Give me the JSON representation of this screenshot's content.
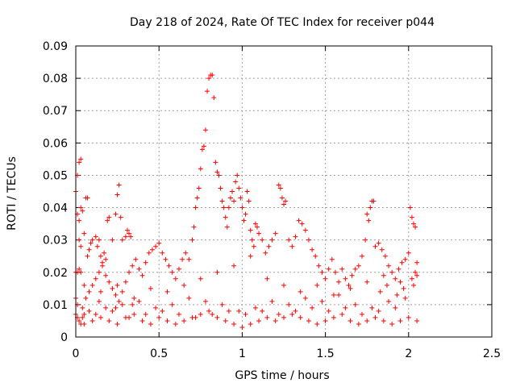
{
  "chart_data": {
    "type": "scatter",
    "title": "Day 218 of 2024, Rate Of TEC Index for receiver p044",
    "xlabel": "GPS time / hours",
    "ylabel": "ROTI / TECUs",
    "xlim": [
      0,
      2.5
    ],
    "ylim": [
      0,
      0.09
    ],
    "grid": true,
    "x_ticks": [
      0,
      0.5,
      1,
      1.5,
      2,
      2.5
    ],
    "x_tick_labels": [
      "0",
      "0.5",
      "1",
      "1.5",
      "2",
      "2.5"
    ],
    "y_ticks": [
      0,
      0.01,
      0.02,
      0.03,
      0.04,
      0.05,
      0.06,
      0.07,
      0.08,
      0.09
    ],
    "y_tick_labels": [
      "0",
      "0.01",
      "0.02",
      "0.03",
      "0.04",
      "0.05",
      "0.06",
      "0.07",
      "0.08",
      "0.09"
    ],
    "marker": "+",
    "marker_color": "#ff0000",
    "series": [
      {
        "name": "ROTI",
        "points": [
          [
            0.0,
            0.045
          ],
          [
            0.01,
            0.05
          ],
          [
            0.02,
            0.054
          ],
          [
            0.03,
            0.055
          ],
          [
            0.01,
            0.038
          ],
          [
            0.02,
            0.036
          ],
          [
            0.03,
            0.04
          ],
          [
            0.04,
            0.039
          ],
          [
            0.06,
            0.043
          ],
          [
            0.07,
            0.043
          ],
          [
            0.0,
            0.02
          ],
          [
            0.01,
            0.02
          ],
          [
            0.02,
            0.021
          ],
          [
            0.03,
            0.02
          ],
          [
            0.0,
            0.012
          ],
          [
            0.01,
            0.01
          ],
          [
            0.0,
            0.007
          ],
          [
            0.01,
            0.006
          ],
          [
            0.02,
            0.005
          ],
          [
            0.03,
            0.004
          ],
          [
            0.04,
            0.006
          ],
          [
            0.05,
            0.007
          ],
          [
            0.02,
            0.03
          ],
          [
            0.03,
            0.028
          ],
          [
            0.05,
            0.032
          ],
          [
            0.07,
            0.025
          ],
          [
            0.08,
            0.027
          ],
          [
            0.09,
            0.029
          ],
          [
            0.1,
            0.03
          ],
          [
            0.12,
            0.031
          ],
          [
            0.13,
            0.028
          ],
          [
            0.14,
            0.03
          ],
          [
            0.15,
            0.025
          ],
          [
            0.16,
            0.023
          ],
          [
            0.17,
            0.026
          ],
          [
            0.18,
            0.024
          ],
          [
            0.19,
            0.036
          ],
          [
            0.2,
            0.037
          ],
          [
            0.22,
            0.03
          ],
          [
            0.24,
            0.038
          ],
          [
            0.25,
            0.044
          ],
          [
            0.26,
            0.047
          ],
          [
            0.27,
            0.037
          ],
          [
            0.28,
            0.03
          ],
          [
            0.3,
            0.031
          ],
          [
            0.31,
            0.033
          ],
          [
            0.32,
            0.032
          ],
          [
            0.33,
            0.031
          ],
          [
            0.06,
            0.012
          ],
          [
            0.08,
            0.014
          ],
          [
            0.1,
            0.016
          ],
          [
            0.12,
            0.018
          ],
          [
            0.14,
            0.02
          ],
          [
            0.16,
            0.022
          ],
          [
            0.18,
            0.019
          ],
          [
            0.2,
            0.017
          ],
          [
            0.22,
            0.015
          ],
          [
            0.24,
            0.013
          ],
          [
            0.26,
            0.011
          ],
          [
            0.28,
            0.014
          ],
          [
            0.3,
            0.017
          ],
          [
            0.32,
            0.02
          ],
          [
            0.34,
            0.022
          ],
          [
            0.36,
            0.024
          ],
          [
            0.38,
            0.021
          ],
          [
            0.4,
            0.019
          ],
          [
            0.42,
            0.023
          ],
          [
            0.44,
            0.026
          ],
          [
            0.46,
            0.027
          ],
          [
            0.48,
            0.028
          ],
          [
            0.5,
            0.029
          ],
          [
            0.52,
            0.026
          ],
          [
            0.54,
            0.024
          ],
          [
            0.56,
            0.022
          ],
          [
            0.58,
            0.02
          ],
          [
            0.6,
            0.018
          ],
          [
            0.62,
            0.021
          ],
          [
            0.64,
            0.024
          ],
          [
            0.66,
            0.026
          ],
          [
            0.68,
            0.024
          ],
          [
            0.7,
            0.03
          ],
          [
            0.71,
            0.034
          ],
          [
            0.72,
            0.04
          ],
          [
            0.73,
            0.043
          ],
          [
            0.74,
            0.046
          ],
          [
            0.75,
            0.052
          ],
          [
            0.76,
            0.058
          ],
          [
            0.77,
            0.059
          ],
          [
            0.78,
            0.064
          ],
          [
            0.79,
            0.076
          ],
          [
            0.8,
            0.08
          ],
          [
            0.81,
            0.081
          ],
          [
            0.82,
            0.081
          ],
          [
            0.83,
            0.074
          ],
          [
            0.84,
            0.054
          ],
          [
            0.85,
            0.051
          ],
          [
            0.86,
            0.05
          ],
          [
            0.87,
            0.046
          ],
          [
            0.88,
            0.042
          ],
          [
            0.89,
            0.04
          ],
          [
            0.9,
            0.037
          ],
          [
            0.91,
            0.034
          ],
          [
            0.92,
            0.04
          ],
          [
            0.93,
            0.043
          ],
          [
            0.94,
            0.045
          ],
          [
            0.95,
            0.042
          ],
          [
            0.96,
            0.048
          ],
          [
            0.97,
            0.05
          ],
          [
            0.98,
            0.046
          ],
          [
            0.99,
            0.043
          ],
          [
            1.0,
            0.04
          ],
          [
            1.01,
            0.036
          ],
          [
            1.02,
            0.038
          ],
          [
            1.03,
            0.045
          ],
          [
            1.04,
            0.042
          ],
          [
            1.05,
            0.033
          ],
          [
            1.06,
            0.03
          ],
          [
            1.07,
            0.028
          ],
          [
            1.08,
            0.035
          ],
          [
            1.09,
            0.034
          ],
          [
            1.1,
            0.032
          ],
          [
            1.12,
            0.03
          ],
          [
            1.14,
            0.026
          ],
          [
            1.16,
            0.028
          ],
          [
            1.18,
            0.03
          ],
          [
            1.2,
            0.032
          ],
          [
            1.22,
            0.047
          ],
          [
            1.23,
            0.046
          ],
          [
            1.24,
            0.043
          ],
          [
            1.25,
            0.041
          ],
          [
            1.26,
            0.042
          ],
          [
            1.28,
            0.03
          ],
          [
            1.3,
            0.028
          ],
          [
            1.32,
            0.031
          ],
          [
            1.34,
            0.036
          ],
          [
            1.36,
            0.035
          ],
          [
            1.38,
            0.033
          ],
          [
            1.4,
            0.03
          ],
          [
            1.42,
            0.027
          ],
          [
            1.44,
            0.025
          ],
          [
            1.46,
            0.022
          ],
          [
            1.48,
            0.02
          ],
          [
            1.5,
            0.018
          ],
          [
            1.52,
            0.021
          ],
          [
            1.54,
            0.024
          ],
          [
            1.56,
            0.02
          ],
          [
            1.58,
            0.017
          ],
          [
            1.6,
            0.021
          ],
          [
            1.62,
            0.018
          ],
          [
            1.64,
            0.016
          ],
          [
            1.66,
            0.019
          ],
          [
            1.68,
            0.021
          ],
          [
            1.7,
            0.022
          ],
          [
            1.72,
            0.025
          ],
          [
            1.74,
            0.03
          ],
          [
            1.75,
            0.038
          ],
          [
            1.76,
            0.036
          ],
          [
            1.77,
            0.04
          ],
          [
            1.78,
            0.042
          ],
          [
            1.79,
            0.042
          ],
          [
            1.8,
            0.028
          ],
          [
            1.82,
            0.029
          ],
          [
            1.84,
            0.027
          ],
          [
            1.86,
            0.025
          ],
          [
            1.88,
            0.022
          ],
          [
            1.9,
            0.02
          ],
          [
            1.92,
            0.018
          ],
          [
            1.94,
            0.021
          ],
          [
            1.96,
            0.023
          ],
          [
            1.98,
            0.024
          ],
          [
            2.0,
            0.026
          ],
          [
            2.01,
            0.04
          ],
          [
            2.02,
            0.037
          ],
          [
            2.03,
            0.035
          ],
          [
            2.04,
            0.034
          ],
          [
            2.05,
            0.023
          ],
          [
            0.05,
            0.004
          ],
          [
            0.1,
            0.005
          ],
          [
            0.15,
            0.006
          ],
          [
            0.2,
            0.005
          ],
          [
            0.25,
            0.004
          ],
          [
            0.3,
            0.006
          ],
          [
            0.35,
            0.007
          ],
          [
            0.4,
            0.005
          ],
          [
            0.45,
            0.004
          ],
          [
            0.5,
            0.006
          ],
          [
            0.55,
            0.005
          ],
          [
            0.6,
            0.004
          ],
          [
            0.65,
            0.005
          ],
          [
            0.7,
            0.006
          ],
          [
            0.75,
            0.007
          ],
          [
            0.8,
            0.008
          ],
          [
            0.85,
            0.006
          ],
          [
            0.9,
            0.005
          ],
          [
            0.95,
            0.004
          ],
          [
            1.0,
            0.003
          ],
          [
            1.05,
            0.004
          ],
          [
            1.1,
            0.005
          ],
          [
            1.15,
            0.006
          ],
          [
            1.2,
            0.005
          ],
          [
            1.25,
            0.006
          ],
          [
            1.3,
            0.007
          ],
          [
            1.35,
            0.006
          ],
          [
            1.4,
            0.005
          ],
          [
            1.45,
            0.004
          ],
          [
            1.5,
            0.005
          ],
          [
            1.55,
            0.006
          ],
          [
            1.6,
            0.007
          ],
          [
            1.65,
            0.005
          ],
          [
            1.7,
            0.004
          ],
          [
            1.75,
            0.005
          ],
          [
            1.8,
            0.006
          ],
          [
            1.85,
            0.005
          ],
          [
            1.9,
            0.004
          ],
          [
            1.95,
            0.005
          ],
          [
            2.0,
            0.006
          ],
          [
            2.05,
            0.005
          ],
          [
            0.08,
            0.008
          ],
          [
            0.18,
            0.009
          ],
          [
            0.28,
            0.01
          ],
          [
            0.38,
            0.011
          ],
          [
            0.48,
            0.009
          ],
          [
            0.58,
            0.01
          ],
          [
            0.68,
            0.012
          ],
          [
            0.78,
            0.011
          ],
          [
            0.88,
            0.01
          ],
          [
            0.98,
            0.008
          ],
          [
            1.08,
            0.009
          ],
          [
            1.18,
            0.011
          ],
          [
            1.28,
            0.01
          ],
          [
            1.38,
            0.012
          ],
          [
            1.48,
            0.011
          ],
          [
            1.58,
            0.013
          ],
          [
            1.68,
            0.01
          ],
          [
            1.78,
            0.009
          ],
          [
            1.88,
            0.011
          ],
          [
            1.98,
            0.012
          ],
          [
            0.12,
            0.007
          ],
          [
            0.22,
            0.008
          ],
          [
            0.32,
            0.006
          ],
          [
            0.42,
            0.007
          ],
          [
            0.52,
            0.008
          ],
          [
            0.62,
            0.007
          ],
          [
            0.72,
            0.006
          ],
          [
            0.82,
            0.007
          ],
          [
            0.92,
            0.008
          ],
          [
            1.02,
            0.007
          ],
          [
            1.12,
            0.008
          ],
          [
            1.22,
            0.007
          ],
          [
            1.32,
            0.008
          ],
          [
            1.42,
            0.009
          ],
          [
            1.52,
            0.008
          ],
          [
            1.62,
            0.009
          ],
          [
            1.72,
            0.007
          ],
          [
            1.82,
            0.008
          ],
          [
            1.92,
            0.009
          ],
          [
            2.02,
            0.018
          ],
          [
            2.03,
            0.016
          ],
          [
            2.04,
            0.02
          ],
          [
            2.05,
            0.019
          ],
          [
            1.97,
            0.015
          ],
          [
            1.93,
            0.013
          ],
          [
            1.87,
            0.016
          ],
          [
            1.83,
            0.014
          ],
          [
            0.45,
            0.015
          ],
          [
            0.55,
            0.014
          ],
          [
            0.65,
            0.016
          ],
          [
            0.75,
            0.018
          ],
          [
            0.85,
            0.02
          ],
          [
            0.95,
            0.022
          ],
          [
            1.05,
            0.025
          ],
          [
            1.15,
            0.018
          ],
          [
            1.25,
            0.016
          ],
          [
            1.35,
            0.014
          ],
          [
            1.45,
            0.016
          ],
          [
            1.55,
            0.013
          ],
          [
            1.65,
            0.015
          ],
          [
            1.75,
            0.017
          ],
          [
            1.85,
            0.019
          ],
          [
            1.95,
            0.017
          ],
          [
            0.35,
            0.012
          ],
          [
            0.25,
            0.016
          ],
          [
            0.15,
            0.014
          ],
          [
            0.05,
            0.016
          ],
          [
            0.04,
            0.009
          ],
          [
            0.14,
            0.011
          ],
          [
            0.24,
            0.009
          ],
          [
            0.34,
            0.01
          ]
        ]
      }
    ]
  }
}
